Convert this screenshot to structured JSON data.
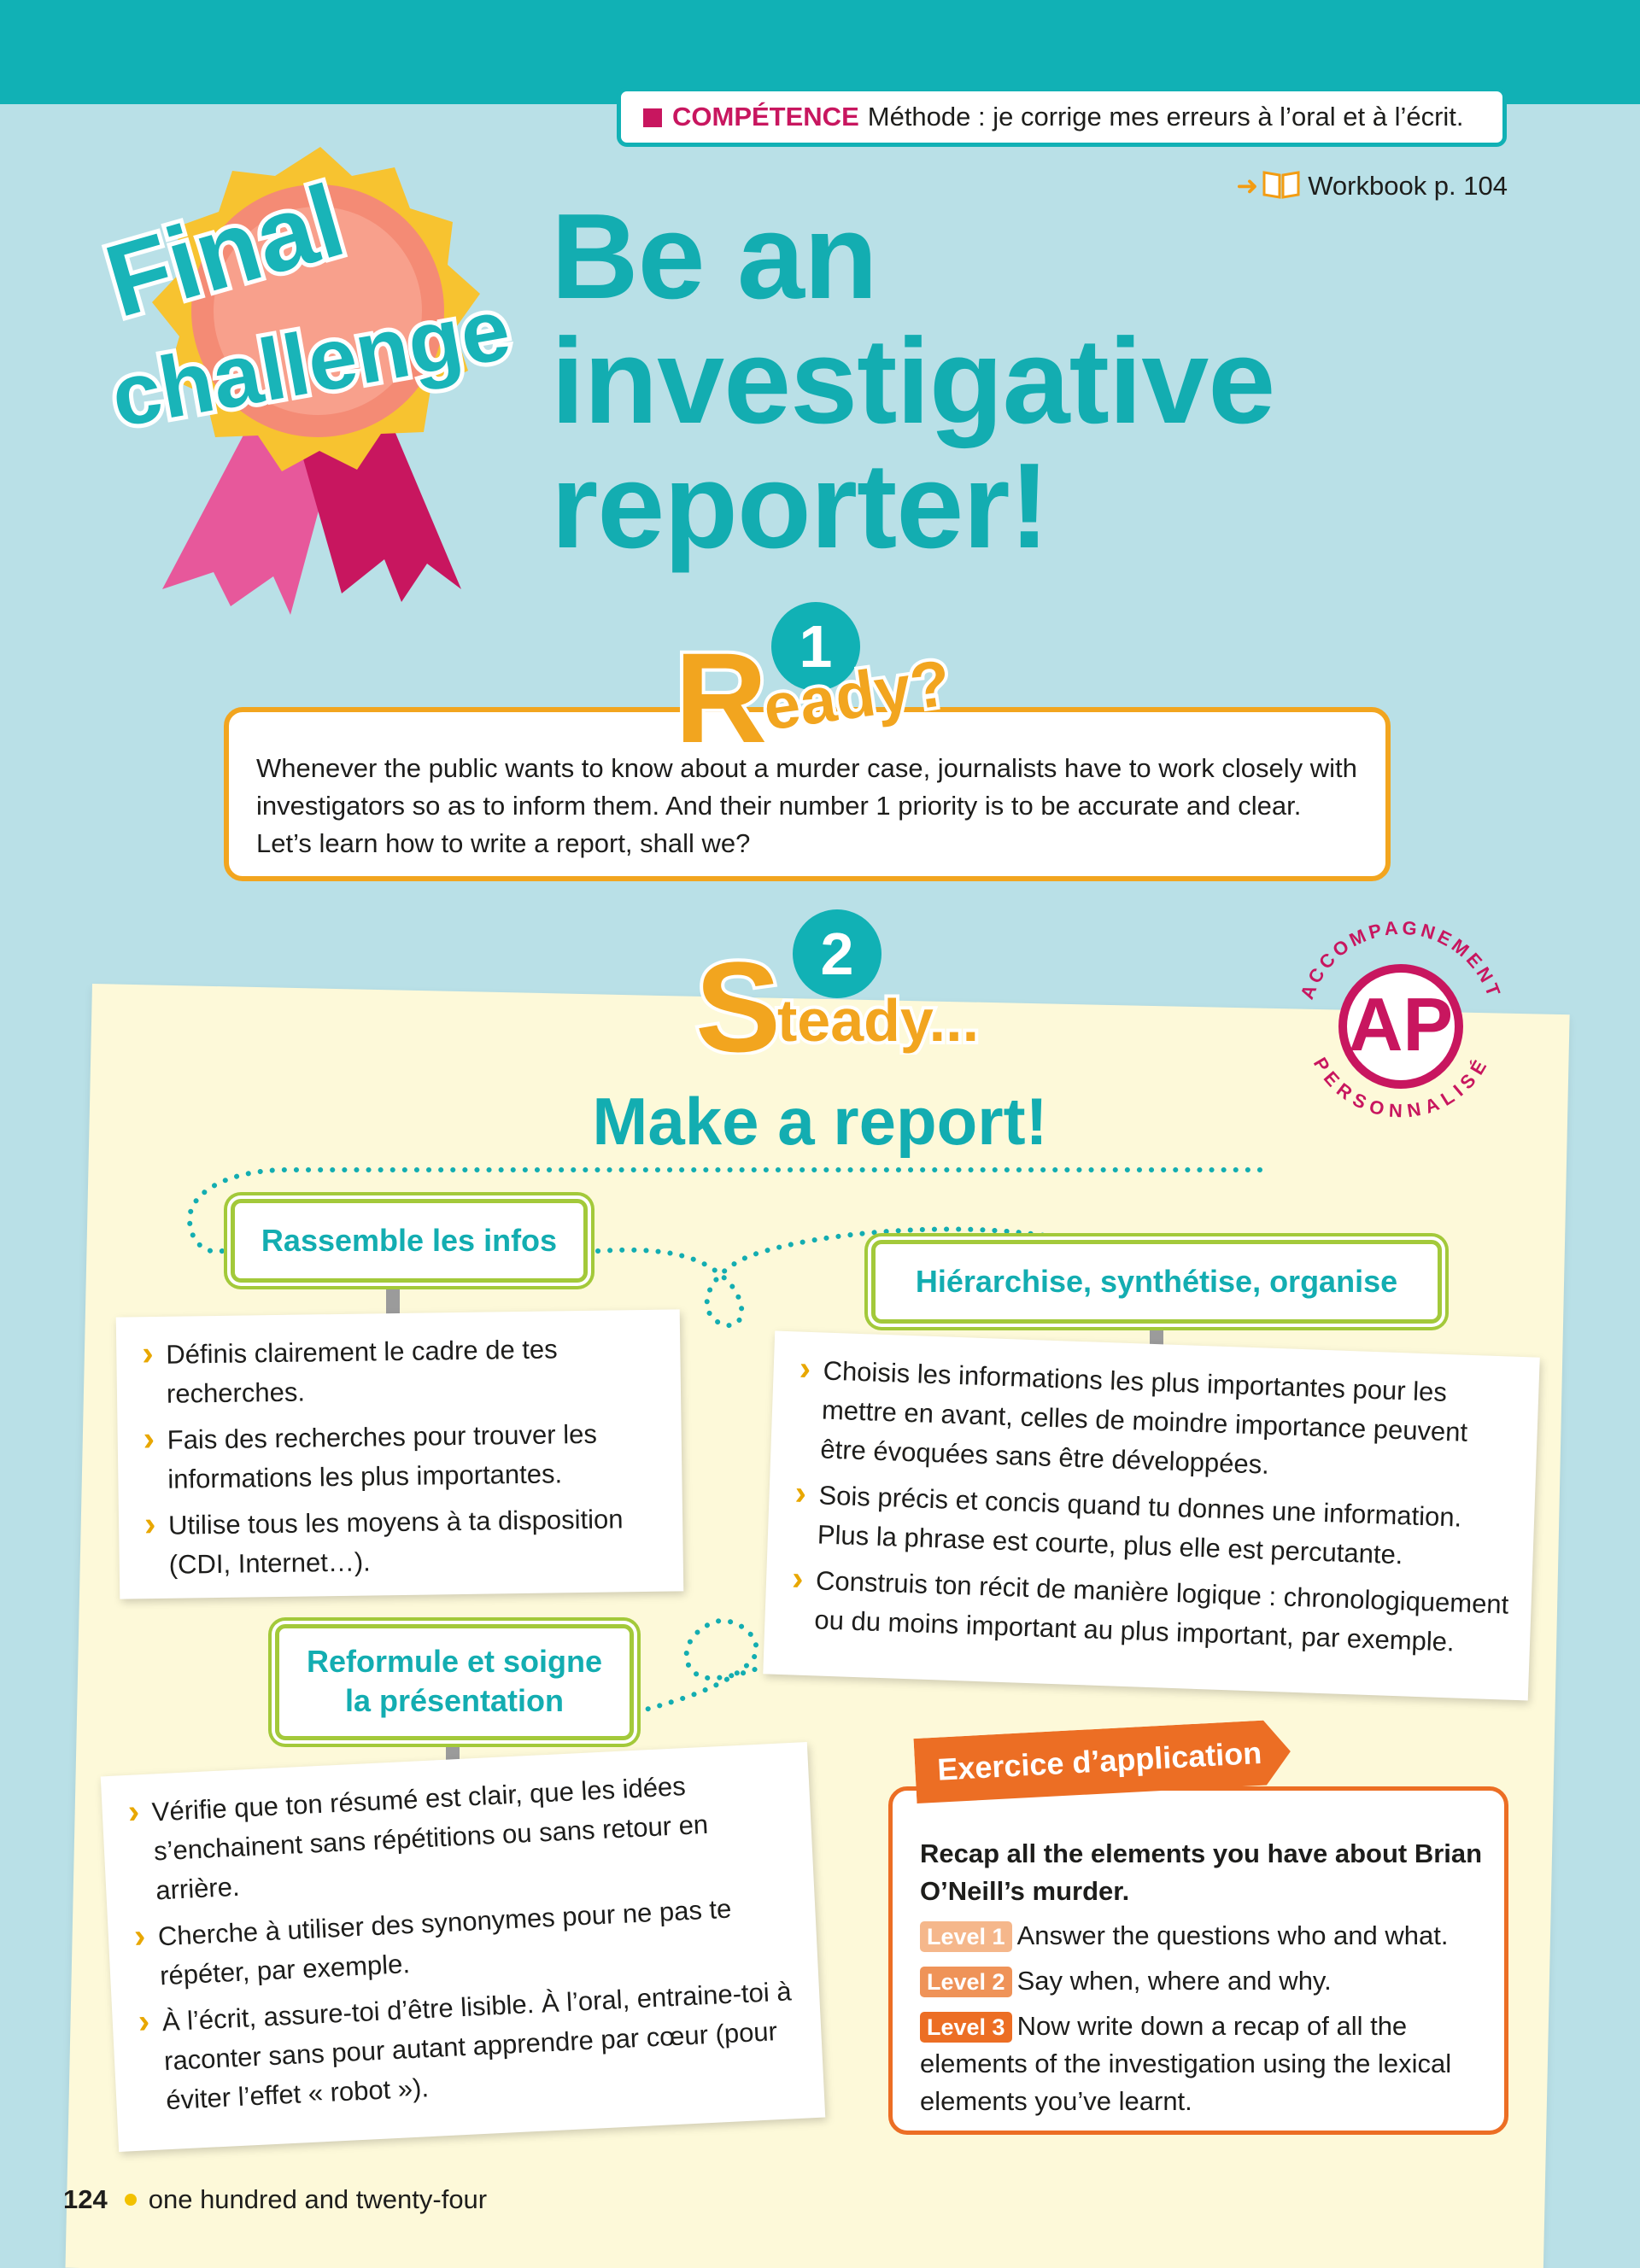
{
  "competence": {
    "label": "COMPÉTENCE",
    "text": "Méthode : je corrige mes erreurs à l’oral et à l’écrit."
  },
  "workbook": {
    "text": "Workbook p. 104"
  },
  "badge": {
    "line1": "Final",
    "line2": "challenge"
  },
  "title": {
    "line1": "Be an",
    "line2": "investigative",
    "line3": "reporter!"
  },
  "ready": {
    "number": "1",
    "letter": "R",
    "rest": "eady?",
    "text": "Whenever the public wants to know about a murder case, journalists have to work closely with investigators so as to inform them. And their number 1 priority is to be accurate and clear. Let’s learn how to write a report, shall we?"
  },
  "steady": {
    "number": "2",
    "letter": "S",
    "rest": "teady..."
  },
  "ap": {
    "top": "ACCOMPAGNEMENT",
    "bottom": "PERSONNALISÉ",
    "center": "AP"
  },
  "make_report": "Make a report!",
  "steps": {
    "gather": {
      "title": "Rassemble les infos",
      "items": [
        "Définis clairement le cadre de tes recherches.",
        "Fais des recherches pour trouver les informations les plus importantes.",
        "Utilise tous les moyens à ta disposition (CDI, Internet…)."
      ]
    },
    "organize": {
      "title": "Hiérarchise, synthétise, organise",
      "items": [
        "Choisis les informations les plus importantes pour les mettre en avant, celles de moindre importance peuvent être évoquées sans être développées.",
        "Sois précis et concis quand tu donnes une information. Plus la phrase est courte, plus elle est percutante.",
        "Construis ton récit de manière logique : chronologiquement ou du moins important au plus important, par exemple."
      ]
    },
    "rephrase": {
      "title_line1": "Reformule et soigne",
      "title_line2": "la présentation",
      "items": [
        "Vérifie que ton résumé est clair, que les idées s’enchainent sans répétitions ou sans retour en arrière.",
        "Cherche à utiliser des synonymes pour ne pas te répéter, par exemple.",
        "À l’écrit, assure-toi d’être lisible. À l’oral, entraine-toi à raconter sans pour autant apprendre par cœur (pour éviter l’effet « robot »)."
      ]
    }
  },
  "exercise": {
    "tab": "Exercice d’application",
    "intro": "Recap all the elements you have about Brian O’Neill’s murder.",
    "levels": [
      {
        "label": "Level 1",
        "text": "Answer the questions who and what."
      },
      {
        "label": "Level 2",
        "text": "Say when, where and why."
      },
      {
        "label": "Level 3",
        "text": "Now write down a recap of all the elements of the investigation using the lexical elements you’ve learnt."
      }
    ]
  },
  "footer": {
    "page_number": "124",
    "page_words": "one hundred and twenty-four"
  },
  "colors": {
    "teal": "#11b1b5",
    "background": "#b9e0e7",
    "magenta": "#c8165f",
    "orange": "#f2a51f",
    "green": "#a3c93a",
    "exercise_orange": "#ec6e24",
    "panel_cream": "#fdf9d9"
  }
}
